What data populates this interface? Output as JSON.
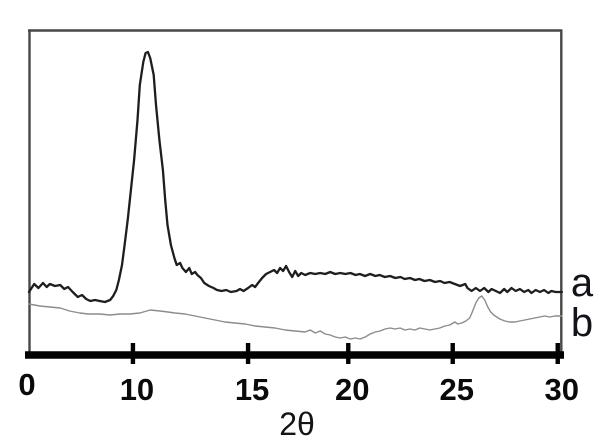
{
  "chart_data": {
    "type": "line",
    "title": "",
    "xlabel": "2θ",
    "ylabel": "",
    "x_ticks": [
      0,
      10,
      15,
      20,
      25,
      30
    ],
    "xlim": [
      0,
      30
    ],
    "ylim": [
      0,
      323
    ],
    "grid": false,
    "legend_position": "right-edge-curve-labels",
    "colors": {
      "a": "#1e1e1e",
      "b": "#8c8c8c",
      "frame": "#474747",
      "axis": "#000000",
      "text": "#0a0a0a"
    },
    "x_anchor_fractions": [
      [
        0,
        0.0
      ],
      [
        10,
        0.195
      ],
      [
        15,
        0.411
      ],
      [
        20,
        0.599
      ],
      [
        25,
        0.795
      ],
      [
        30,
        0.992
      ]
    ],
    "series": [
      {
        "name": "a",
        "stroke_width": 2.3,
        "points": [
          [
            0,
            62
          ],
          [
            0.5,
            70
          ],
          [
            0.9,
            66
          ],
          [
            1.35,
            71
          ],
          [
            1.7,
            67
          ],
          [
            2,
            70
          ],
          [
            2.5,
            68
          ],
          [
            3,
            69
          ],
          [
            3.4,
            65
          ],
          [
            3.75,
            67
          ],
          [
            4.2,
            62
          ],
          [
            4.7,
            57
          ],
          [
            5.1,
            59
          ],
          [
            5.5,
            55
          ],
          [
            5.9,
            53
          ],
          [
            6.35,
            54
          ],
          [
            6.8,
            53
          ],
          [
            7.3,
            52
          ],
          [
            7.8,
            54
          ],
          [
            8.1,
            58
          ],
          [
            8.4,
            64
          ],
          [
            8.65,
            74
          ],
          [
            8.95,
            89
          ],
          [
            9.2,
            109
          ],
          [
            9.5,
            134
          ],
          [
            9.8,
            164
          ],
          [
            10.05,
            194
          ],
          [
            10.2,
            234
          ],
          [
            10.3,
            269
          ],
          [
            10.45,
            292
          ],
          [
            10.55,
            301
          ],
          [
            10.65,
            302
          ],
          [
            10.75,
            296
          ],
          [
            10.9,
            279
          ],
          [
            11,
            249
          ],
          [
            11.15,
            214
          ],
          [
            11.3,
            184
          ],
          [
            11.4,
            154
          ],
          [
            11.5,
            129
          ],
          [
            11.65,
            109
          ],
          [
            11.8,
            96
          ],
          [
            11.9,
            89
          ],
          [
            12.05,
            91
          ],
          [
            12.15,
            86
          ],
          [
            12.3,
            82
          ],
          [
            12.45,
            86
          ],
          [
            12.55,
            80
          ],
          [
            12.7,
            82
          ],
          [
            12.8,
            79
          ],
          [
            12.95,
            76
          ],
          [
            13.1,
            71
          ],
          [
            13.3,
            68
          ],
          [
            13.5,
            66
          ],
          [
            13.65,
            64
          ],
          [
            13.85,
            63
          ],
          [
            14.05,
            64
          ],
          [
            14.25,
            62
          ],
          [
            14.5,
            63
          ],
          [
            14.65,
            65
          ],
          [
            14.8,
            63
          ],
          [
            15,
            66
          ],
          [
            15.2,
            69
          ],
          [
            15.35,
            67
          ],
          [
            15.5,
            71
          ],
          [
            15.7,
            76
          ],
          [
            15.9,
            80
          ],
          [
            16.1,
            82
          ],
          [
            16.3,
            84
          ],
          [
            16.45,
            81
          ],
          [
            16.6,
            86
          ],
          [
            16.75,
            83
          ],
          [
            16.9,
            88
          ],
          [
            17.05,
            82
          ],
          [
            17.2,
            77
          ],
          [
            17.35,
            83
          ],
          [
            17.5,
            78
          ],
          [
            17.65,
            81
          ],
          [
            17.85,
            79
          ],
          [
            18.1,
            81
          ],
          [
            18.35,
            80
          ],
          [
            18.6,
            81
          ],
          [
            18.85,
            80
          ],
          [
            19.1,
            82
          ],
          [
            19.35,
            80
          ],
          [
            19.6,
            81
          ],
          [
            19.85,
            80
          ],
          [
            20.1,
            81
          ],
          [
            20.35,
            79
          ],
          [
            20.55,
            80
          ],
          [
            20.8,
            78
          ],
          [
            21.05,
            80
          ],
          [
            21.3,
            78
          ],
          [
            21.5,
            79
          ],
          [
            21.75,
            77
          ],
          [
            22,
            78
          ],
          [
            22.25,
            76
          ],
          [
            22.5,
            77
          ],
          [
            22.7,
            75
          ],
          [
            22.95,
            76
          ],
          [
            23.2,
            74
          ],
          [
            23.4,
            75
          ],
          [
            23.65,
            73
          ],
          [
            23.9,
            74
          ],
          [
            24.15,
            72
          ],
          [
            24.4,
            73
          ],
          [
            24.6,
            71
          ],
          [
            24.85,
            72
          ],
          [
            25.1,
            70
          ],
          [
            25.35,
            68
          ],
          [
            25.6,
            70
          ],
          [
            25.7,
            66
          ],
          [
            25.9,
            63
          ],
          [
            26.1,
            66
          ],
          [
            26.3,
            63
          ],
          [
            26.5,
            66
          ],
          [
            26.7,
            62
          ],
          [
            26.85,
            65
          ],
          [
            27.05,
            63
          ],
          [
            27.25,
            61
          ],
          [
            27.45,
            65
          ],
          [
            27.6,
            62
          ],
          [
            27.8,
            66
          ],
          [
            28,
            63
          ],
          [
            28.2,
            65
          ],
          [
            28.4,
            62
          ],
          [
            28.6,
            64
          ],
          [
            28.75,
            61
          ],
          [
            28.95,
            64
          ],
          [
            29.15,
            62
          ],
          [
            29.35,
            64
          ],
          [
            29.55,
            61
          ],
          [
            29.7,
            63
          ],
          [
            29.9,
            62
          ],
          [
            30.2,
            62
          ]
        ]
      },
      {
        "name": "b",
        "stroke_width": 1.4,
        "points": [
          [
            0,
            50
          ],
          [
            1.05,
            48
          ],
          [
            2,
            47
          ],
          [
            3,
            46
          ],
          [
            3.9,
            43
          ],
          [
            4.9,
            41
          ],
          [
            5.7,
            40
          ],
          [
            6.8,
            40
          ],
          [
            7.8,
            39
          ],
          [
            8.75,
            40
          ],
          [
            9.7,
            40
          ],
          [
            10.3,
            41
          ],
          [
            10.75,
            44
          ],
          [
            11.17,
            43
          ],
          [
            11.52,
            42
          ],
          [
            11.83,
            41
          ],
          [
            12.26,
            40
          ],
          [
            12.7,
            38
          ],
          [
            13.13,
            36
          ],
          [
            13.57,
            34
          ],
          [
            14,
            32
          ],
          [
            14.43,
            31
          ],
          [
            14.87,
            30
          ],
          [
            15.35,
            28
          ],
          [
            15.85,
            27
          ],
          [
            16.35,
            26
          ],
          [
            16.85,
            24
          ],
          [
            17.35,
            23
          ],
          [
            17.85,
            22
          ],
          [
            18.1,
            24
          ],
          [
            18.35,
            21
          ],
          [
            18.6,
            23
          ],
          [
            18.85,
            20
          ],
          [
            19.1,
            19
          ],
          [
            19.35,
            17
          ],
          [
            19.6,
            16
          ],
          [
            19.85,
            17
          ],
          [
            20.1,
            15
          ],
          [
            20.33,
            16
          ],
          [
            20.57,
            15
          ],
          [
            20.81,
            17
          ],
          [
            21.05,
            20
          ],
          [
            21.29,
            22
          ],
          [
            21.52,
            23
          ],
          [
            21.76,
            25
          ],
          [
            22,
            26
          ],
          [
            22.24,
            25
          ],
          [
            22.48,
            26
          ],
          [
            22.71,
            24
          ],
          [
            22.95,
            25
          ],
          [
            23.19,
            24
          ],
          [
            23.43,
            26
          ],
          [
            23.67,
            25
          ],
          [
            23.9,
            24
          ],
          [
            24.14,
            25
          ],
          [
            24.38,
            26
          ],
          [
            24.62,
            28
          ],
          [
            24.86,
            29
          ],
          [
            25.1,
            32
          ],
          [
            25.24,
            30
          ],
          [
            25.43,
            31
          ],
          [
            25.62,
            33
          ],
          [
            25.81,
            36
          ],
          [
            25.95,
            43
          ],
          [
            26.1,
            51
          ],
          [
            26.24,
            56
          ],
          [
            26.38,
            58
          ],
          [
            26.52,
            54
          ],
          [
            26.67,
            47
          ],
          [
            26.81,
            42
          ],
          [
            26.95,
            39
          ],
          [
            27.1,
            37
          ],
          [
            27.24,
            35
          ],
          [
            27.48,
            33
          ],
          [
            27.71,
            32
          ],
          [
            27.95,
            32
          ],
          [
            28.19,
            33
          ],
          [
            28.43,
            34
          ],
          [
            28.67,
            35
          ],
          [
            28.9,
            36
          ],
          [
            29.14,
            37
          ],
          [
            29.38,
            38
          ],
          [
            29.62,
            37
          ],
          [
            29.86,
            38
          ],
          [
            30.2,
            38
          ]
        ]
      }
    ]
  }
}
